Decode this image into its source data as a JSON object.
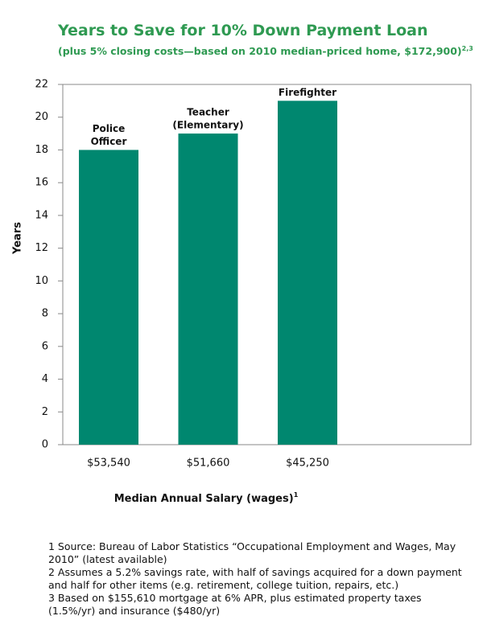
{
  "chart_data": {
    "type": "bar",
    "title": "Years to Save for 10% Down Payment Loan",
    "subtitle": "(plus 5% closing costs—based on 2010 median-priced home, $172,900)",
    "subtitle_superscript": "2,3",
    "categories": [
      "$53,540",
      "$51,660",
      "$45,250"
    ],
    "bar_labels": [
      [
        "Police",
        "Officer"
      ],
      [
        "Teacher",
        "(Elementary)"
      ],
      [
        "Firefighter"
      ]
    ],
    "values": [
      18,
      19,
      21
    ],
    "color": "#00876f",
    "ylim": [
      0,
      22
    ],
    "yticks": [
      0,
      2,
      4,
      6,
      8,
      10,
      12,
      14,
      16,
      18,
      20,
      22
    ],
    "grid": false,
    "y_label": "Years",
    "x_label": "Median Annual Salary (wages)",
    "x_label_superscript": "1"
  },
  "footnotes": [
    "1  Source: Bureau of Labor Statistics “Occupational Employment and Wages, May 2010” (latest available)",
    "2  Assumes a 5.2% savings rate, with half of savings acquired for a down payment and half for other items (e.g. retirement, college tuition, repairs, etc.)",
    "3 Based on $155,610 mortgage at 6% APR, plus estimated property taxes (1.5%/yr) and insurance ($480/yr)"
  ]
}
